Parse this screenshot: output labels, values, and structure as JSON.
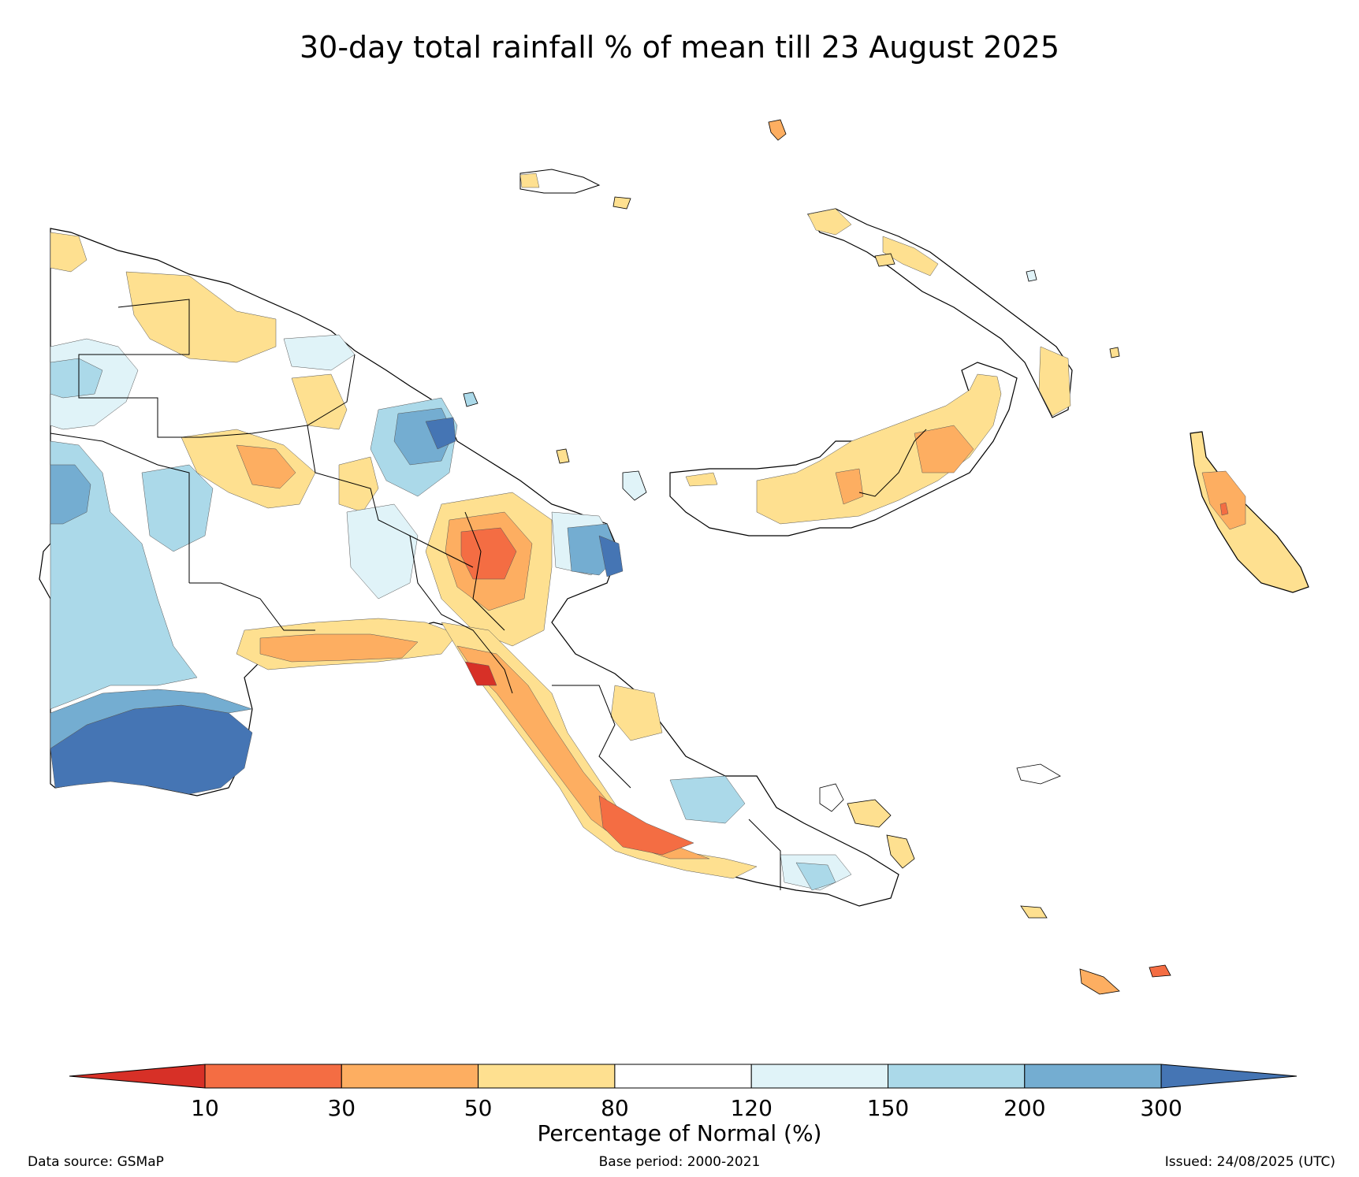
{
  "title": "30-day total rainfall % of mean till 23 August 2025",
  "legend": {
    "label": "Percentage of Normal (%)",
    "ticks": [
      "10",
      "30",
      "50",
      "80",
      "120",
      "150",
      "200",
      "300"
    ],
    "colors": {
      "lt10": "#d73027",
      "10-30": "#f46d43",
      "30-50": "#fdae61",
      "50-80": "#fee090",
      "80-120": "#ffffff",
      "120-150": "#e0f3f8",
      "150-200": "#abd9e9",
      "200-300": "#74add1",
      "gt300": "#4575b4"
    }
  },
  "footer": {
    "source": "Data source: GSMaP",
    "base_period": "Base period: 2000-2021",
    "issued": "Issued: 24/08/2025 (UTC)"
  }
}
